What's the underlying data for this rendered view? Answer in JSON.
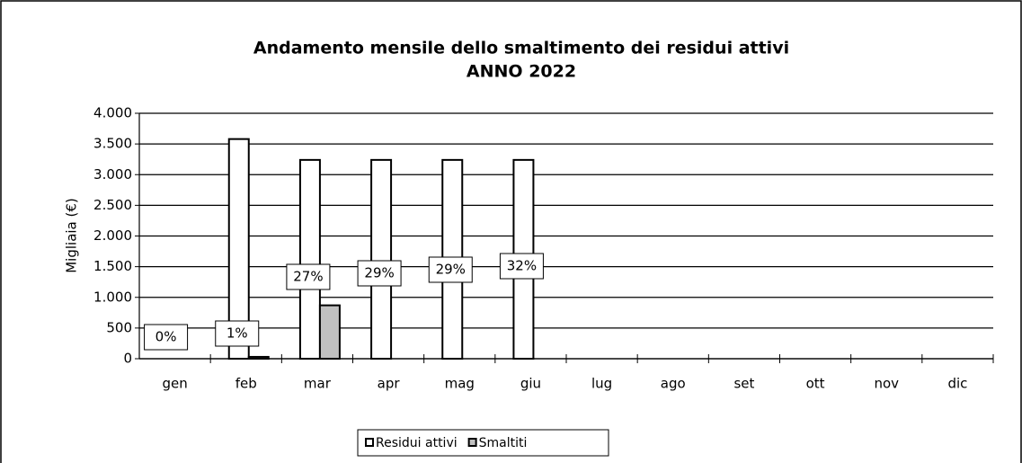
{
  "chart_data": {
    "type": "bar",
    "title": "Andamento mensile dello smaltimento dei residui attivi",
    "subtitle": "ANNO 2022",
    "y_label": "Migliaia (€)",
    "categories": [
      "gen",
      "feb",
      "mar",
      "apr",
      "mag",
      "giu",
      "lug",
      "ago",
      "set",
      "ott",
      "nov",
      "dic"
    ],
    "series": [
      {
        "name": "Residui attivi",
        "color": "#ffffff",
        "values": [
          null,
          3580,
          3240,
          3240,
          3240,
          3240,
          null,
          null,
          null,
          null,
          null,
          null
        ]
      },
      {
        "name": "Smaltiti",
        "color": "#c0c0c0",
        "values": [
          null,
          30,
          870,
          null,
          null,
          null,
          null,
          null,
          null,
          null,
          null,
          null
        ]
      }
    ],
    "percent_labels": [
      "0%",
      "1%",
      "27%",
      "29%",
      "29%",
      "32%"
    ],
    "ylim": [
      0,
      4000
    ],
    "yticks": [
      0,
      500,
      {
        "value": 1000,
        "label": "1.000"
      },
      {
        "value": 1500,
        "label": "1.500"
      },
      {
        "value": 2000,
        "label": "2.000"
      },
      {
        "value": 2500,
        "label": "2.500"
      },
      {
        "value": 3000,
        "label": "3.000"
      },
      {
        "value": 3500,
        "label": "3.500"
      },
      {
        "value": 4000,
        "label": "4.000"
      }
    ],
    "grid": true,
    "legend": "bottom"
  }
}
